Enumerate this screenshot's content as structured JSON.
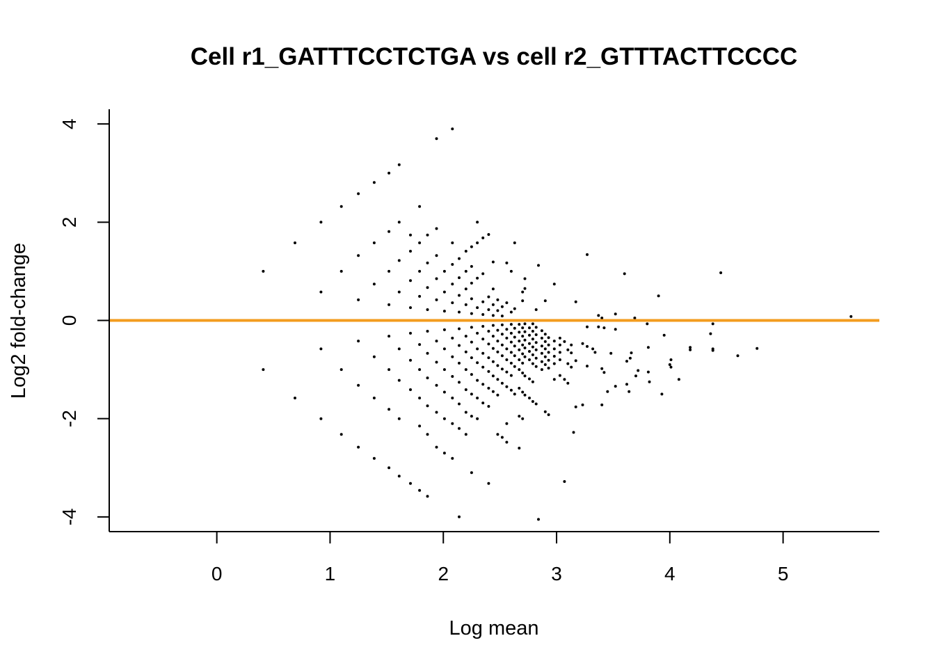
{
  "chart_data": {
    "type": "scatter",
    "title": "Cell r1_GATTTCCTCTGA vs cell r2_GTTTACTTCCCC",
    "xlabel": "Log mean",
    "ylabel": "Log2 fold-change",
    "xlim": [
      -0.95,
      5.85
    ],
    "ylim": [
      -4.3,
      4.3
    ],
    "xticks": [
      0,
      1,
      2,
      3,
      4,
      5
    ],
    "yticks": [
      -4,
      -2,
      0,
      2,
      4
    ],
    "xtick_labels": [
      "0",
      "1",
      "2",
      "3",
      "4",
      "5"
    ],
    "ytick_labels": [
      "-4",
      "-2",
      "0",
      "2",
      "4"
    ],
    "grid": false,
    "reference_line": {
      "y": 0,
      "color": "#f39c1f"
    },
    "point_color": "#000000",
    "points": [
      [
        0.0,
        0.0
      ],
      [
        0.41,
        1.0
      ],
      [
        0.41,
        -1.0
      ],
      [
        0.41,
        0.0
      ],
      [
        0.69,
        1.58
      ],
      [
        0.69,
        -1.58
      ],
      [
        0.69,
        0.0
      ],
      [
        0.92,
        2.0
      ],
      [
        0.92,
        0.58
      ],
      [
        0.92,
        -0.58
      ],
      [
        0.92,
        -2.0
      ],
      [
        0.92,
        0.0
      ],
      [
        1.1,
        2.32
      ],
      [
        1.1,
        1.0
      ],
      [
        1.1,
        -1.0
      ],
      [
        1.1,
        -2.32
      ],
      [
        1.1,
        0.0
      ],
      [
        1.25,
        2.58
      ],
      [
        1.25,
        1.32
      ],
      [
        1.25,
        0.42
      ],
      [
        1.25,
        -0.42
      ],
      [
        1.25,
        -1.32
      ],
      [
        1.25,
        -2.58
      ],
      [
        1.39,
        2.81
      ],
      [
        1.39,
        1.58
      ],
      [
        1.39,
        0.74
      ],
      [
        1.39,
        -0.74
      ],
      [
        1.39,
        -1.58
      ],
      [
        1.39,
        -2.81
      ],
      [
        1.39,
        0.0
      ],
      [
        1.52,
        3.0
      ],
      [
        1.52,
        1.81
      ],
      [
        1.52,
        1.0
      ],
      [
        1.52,
        0.32
      ],
      [
        1.52,
        -0.32
      ],
      [
        1.52,
        -1.0
      ],
      [
        1.52,
        -1.81
      ],
      [
        1.52,
        -3.0
      ],
      [
        1.61,
        3.17
      ],
      [
        1.61,
        2.0
      ],
      [
        1.61,
        1.22
      ],
      [
        1.61,
        0.58
      ],
      [
        1.61,
        -0.58
      ],
      [
        1.61,
        -1.22
      ],
      [
        1.61,
        -2.0
      ],
      [
        1.61,
        -3.17
      ],
      [
        1.61,
        0.0
      ],
      [
        1.71,
        1.74
      ],
      [
        1.71,
        1.41
      ],
      [
        1.71,
        0.81
      ],
      [
        1.71,
        0.26
      ],
      [
        1.71,
        -0.26
      ],
      [
        1.71,
        -0.81
      ],
      [
        1.71,
        -1.41
      ],
      [
        1.71,
        -3.32
      ],
      [
        1.79,
        2.32
      ],
      [
        1.79,
        1.58
      ],
      [
        1.79,
        1.0
      ],
      [
        1.79,
        0.49
      ],
      [
        1.79,
        -0.49
      ],
      [
        1.79,
        -1.0
      ],
      [
        1.79,
        -1.58
      ],
      [
        1.79,
        -2.15
      ],
      [
        1.79,
        -3.46
      ],
      [
        1.79,
        0.0
      ],
      [
        1.86,
        1.74
      ],
      [
        1.86,
        1.17
      ],
      [
        1.86,
        0.67
      ],
      [
        1.86,
        0.22
      ],
      [
        1.86,
        -0.22
      ],
      [
        1.86,
        -0.67
      ],
      [
        1.86,
        -1.17
      ],
      [
        1.86,
        -1.74
      ],
      [
        1.86,
        -2.32
      ],
      [
        1.86,
        -3.58
      ],
      [
        1.94,
        3.7
      ],
      [
        1.94,
        1.87
      ],
      [
        1.94,
        1.32
      ],
      [
        1.94,
        0.85
      ],
      [
        1.94,
        0.42
      ],
      [
        1.94,
        -0.42
      ],
      [
        1.94,
        -0.85
      ],
      [
        1.94,
        -1.32
      ],
      [
        1.94,
        -1.87
      ],
      [
        1.94,
        -2.58
      ],
      [
        1.94,
        0.0
      ],
      [
        2.01,
        1.0
      ],
      [
        2.01,
        0.58
      ],
      [
        2.01,
        0.19
      ],
      [
        2.01,
        -0.19
      ],
      [
        2.01,
        -0.58
      ],
      [
        2.01,
        -1.0
      ],
      [
        2.01,
        -1.46
      ],
      [
        2.01,
        -2.0
      ],
      [
        2.01,
        -2.7
      ],
      [
        2.08,
        3.9
      ],
      [
        2.08,
        1.58
      ],
      [
        2.08,
        1.14
      ],
      [
        2.08,
        0.74
      ],
      [
        2.08,
        0.36
      ],
      [
        2.08,
        0.0
      ],
      [
        2.08,
        -0.36
      ],
      [
        2.08,
        -0.74
      ],
      [
        2.08,
        -1.14
      ],
      [
        2.08,
        -1.58
      ],
      [
        2.08,
        -2.1
      ],
      [
        2.08,
        -2.81
      ],
      [
        2.14,
        1.26
      ],
      [
        2.14,
        0.87
      ],
      [
        2.14,
        0.51
      ],
      [
        2.14,
        0.17
      ],
      [
        2.14,
        -0.17
      ],
      [
        2.14,
        -0.51
      ],
      [
        2.14,
        -0.87
      ],
      [
        2.14,
        -1.26
      ],
      [
        2.14,
        -1.7
      ],
      [
        2.14,
        -2.2
      ],
      [
        2.14,
        -4.0
      ],
      [
        2.2,
        1.41
      ],
      [
        2.2,
        1.0
      ],
      [
        2.2,
        0.64
      ],
      [
        2.2,
        0.32
      ],
      [
        2.2,
        0.0
      ],
      [
        2.2,
        -0.32
      ],
      [
        2.2,
        -0.64
      ],
      [
        2.2,
        -1.0
      ],
      [
        2.2,
        -1.41
      ],
      [
        2.2,
        -1.87
      ],
      [
        2.2,
        -2.32
      ],
      [
        2.25,
        1.5
      ],
      [
        2.25,
        1.1
      ],
      [
        2.25,
        0.76
      ],
      [
        2.25,
        0.44
      ],
      [
        2.25,
        0.14
      ],
      [
        2.25,
        -0.14
      ],
      [
        2.25,
        -0.44
      ],
      [
        2.25,
        -0.76
      ],
      [
        2.25,
        -1.1
      ],
      [
        2.25,
        -1.5
      ],
      [
        2.25,
        -1.95
      ],
      [
        2.25,
        -3.1
      ],
      [
        2.3,
        2.0
      ],
      [
        2.3,
        1.58
      ],
      [
        2.3,
        0.86
      ],
      [
        2.3,
        0.26
      ],
      [
        2.3,
        -0.26
      ],
      [
        2.3,
        -0.58
      ],
      [
        2.3,
        -0.86
      ],
      [
        2.3,
        -1.22
      ],
      [
        2.3,
        -1.58
      ],
      [
        2.3,
        -2.0
      ],
      [
        2.3,
        0.0
      ],
      [
        2.35,
        1.68
      ],
      [
        2.35,
        0.95
      ],
      [
        2.35,
        0.38
      ],
      [
        2.35,
        0.12
      ],
      [
        2.35,
        -0.12
      ],
      [
        2.35,
        -0.38
      ],
      [
        2.35,
        -0.67
      ],
      [
        2.35,
        -0.95
      ],
      [
        2.35,
        -1.3
      ],
      [
        2.35,
        -1.68
      ],
      [
        2.4,
        1.75
      ],
      [
        2.4,
        0.48
      ],
      [
        2.4,
        0.22
      ],
      [
        2.4,
        -0.22
      ],
      [
        2.4,
        -0.48
      ],
      [
        2.4,
        -0.76
      ],
      [
        2.4,
        -1.04
      ],
      [
        2.4,
        -1.38
      ],
      [
        2.4,
        -1.75
      ],
      [
        2.4,
        -3.32
      ],
      [
        2.44,
        1.19
      ],
      [
        2.44,
        0.64
      ],
      [
        2.44,
        0.32
      ],
      [
        2.44,
        0.1
      ],
      [
        2.44,
        -0.1
      ],
      [
        2.44,
        -0.32
      ],
      [
        2.44,
        -0.57
      ],
      [
        2.44,
        -0.84
      ],
      [
        2.44,
        -1.13
      ],
      [
        2.44,
        -1.45
      ],
      [
        2.48,
        0.42
      ],
      [
        2.48,
        0.2
      ],
      [
        2.48,
        -0.2
      ],
      [
        2.48,
        -0.42
      ],
      [
        2.48,
        -0.64
      ],
      [
        2.48,
        -0.92
      ],
      [
        2.48,
        -1.2
      ],
      [
        2.48,
        -1.52
      ],
      [
        2.48,
        -2.32
      ],
      [
        2.52,
        0.28
      ],
      [
        2.52,
        0.09
      ],
      [
        2.52,
        -0.09
      ],
      [
        2.52,
        -0.28
      ],
      [
        2.52,
        -0.5
      ],
      [
        2.52,
        -0.72
      ],
      [
        2.52,
        -0.99
      ],
      [
        2.52,
        -1.28
      ],
      [
        2.52,
        -2.38
      ],
      [
        2.56,
        1.17
      ],
      [
        2.56,
        0.36
      ],
      [
        2.56,
        -0.18
      ],
      [
        2.56,
        -0.36
      ],
      [
        2.56,
        -0.58
      ],
      [
        2.56,
        -0.8
      ],
      [
        2.56,
        -1.05
      ],
      [
        2.56,
        -1.35
      ],
      [
        2.56,
        -2.1
      ],
      [
        2.56,
        -2.48
      ],
      [
        2.6,
        1.0
      ],
      [
        2.6,
        0.17
      ],
      [
        2.6,
        -0.08
      ],
      [
        2.6,
        -0.26
      ],
      [
        2.6,
        -0.44
      ],
      [
        2.6,
        -0.65
      ],
      [
        2.6,
        -0.87
      ],
      [
        2.6,
        -1.12
      ],
      [
        2.6,
        -1.42
      ],
      [
        2.6,
        0.0
      ],
      [
        2.63,
        1.58
      ],
      [
        2.63,
        0.24
      ],
      [
        2.63,
        -0.16
      ],
      [
        2.63,
        -0.34
      ],
      [
        2.63,
        -0.52
      ],
      [
        2.63,
        -0.72
      ],
      [
        2.63,
        -0.94
      ],
      [
        2.63,
        -1.5
      ],
      [
        2.67,
        -0.08
      ],
      [
        2.67,
        -0.24
      ],
      [
        2.67,
        -0.42
      ],
      [
        2.67,
        -0.6
      ],
      [
        2.67,
        -0.8
      ],
      [
        2.67,
        -1.0
      ],
      [
        2.67,
        -1.38
      ],
      [
        2.67,
        -1.95
      ],
      [
        2.67,
        -2.6
      ],
      [
        2.7,
        0.58
      ],
      [
        2.7,
        0.4
      ],
      [
        2.7,
        -0.15
      ],
      [
        2.7,
        -0.32
      ],
      [
        2.7,
        -0.5
      ],
      [
        2.7,
        -0.68
      ],
      [
        2.7,
        -0.87
      ],
      [
        2.7,
        -1.07
      ],
      [
        2.7,
        -1.46
      ],
      [
        2.7,
        -2.0
      ],
      [
        2.72,
        0.85
      ],
      [
        2.72,
        0.65
      ],
      [
        2.72,
        -0.07
      ],
      [
        2.72,
        -0.23
      ],
      [
        2.72,
        -0.4
      ],
      [
        2.72,
        -0.56
      ],
      [
        2.72,
        -0.74
      ],
      [
        2.72,
        -1.13
      ],
      [
        2.72,
        -1.52
      ],
      [
        2.76,
        -0.15
      ],
      [
        2.76,
        -0.3
      ],
      [
        2.76,
        -0.47
      ],
      [
        2.76,
        -0.63
      ],
      [
        2.76,
        -0.8
      ],
      [
        2.76,
        -1.19
      ],
      [
        2.76,
        -1.58
      ],
      [
        2.79,
        -0.07
      ],
      [
        2.79,
        -0.22
      ],
      [
        2.79,
        -0.38
      ],
      [
        2.79,
        -0.54
      ],
      [
        2.79,
        -0.7
      ],
      [
        2.79,
        -0.88
      ],
      [
        2.79,
        -1.25
      ],
      [
        2.79,
        -1.65
      ],
      [
        2.82,
        0.22
      ],
      [
        2.82,
        -0.14
      ],
      [
        2.82,
        -0.29
      ],
      [
        2.82,
        -0.45
      ],
      [
        2.82,
        -0.6
      ],
      [
        2.82,
        -0.77
      ],
      [
        2.82,
        -0.94
      ],
      [
        2.82,
        -1.7
      ],
      [
        2.84,
        1.12
      ],
      [
        2.84,
        -4.05
      ],
      [
        2.87,
        -0.21
      ],
      [
        2.87,
        -0.36
      ],
      [
        2.87,
        -0.52
      ],
      [
        2.87,
        -0.67
      ],
      [
        2.87,
        -0.84
      ],
      [
        2.87,
        -1.0
      ],
      [
        2.9,
        0.4
      ],
      [
        2.9,
        -0.28
      ],
      [
        2.9,
        -0.43
      ],
      [
        2.9,
        -0.58
      ],
      [
        2.9,
        -0.74
      ],
      [
        2.9,
        -0.9
      ],
      [
        2.9,
        -1.86
      ],
      [
        2.93,
        -0.35
      ],
      [
        2.93,
        -0.5
      ],
      [
        2.93,
        -0.65
      ],
      [
        2.93,
        -0.81
      ],
      [
        2.93,
        -0.97
      ],
      [
        2.93,
        -1.92
      ],
      [
        2.98,
        0.74
      ],
      [
        2.98,
        -0.42
      ],
      [
        2.98,
        -0.58
      ],
      [
        2.98,
        -0.73
      ],
      [
        2.98,
        -0.88
      ],
      [
        2.98,
        -1.2
      ],
      [
        3.03,
        -0.36
      ],
      [
        3.03,
        -0.5
      ],
      [
        3.03,
        -0.65
      ],
      [
        3.03,
        -0.8
      ],
      [
        3.03,
        -1.12
      ],
      [
        3.07,
        -0.43
      ],
      [
        3.07,
        -1.2
      ],
      [
        3.07,
        -3.28
      ],
      [
        3.1,
        -0.6
      ],
      [
        3.1,
        -0.88
      ],
      [
        3.1,
        -1.28
      ],
      [
        3.13,
        -0.5
      ],
      [
        3.13,
        -0.66
      ],
      [
        3.13,
        -0.95
      ],
      [
        3.17,
        0.38
      ],
      [
        3.17,
        -0.82
      ],
      [
        3.17,
        -1.76
      ],
      [
        3.15,
        -2.28
      ],
      [
        3.23,
        -0.47
      ],
      [
        3.23,
        -1.72
      ],
      [
        3.27,
        1.34
      ],
      [
        3.27,
        -0.13
      ],
      [
        3.27,
        -0.53
      ],
      [
        3.27,
        -0.93
      ],
      [
        3.32,
        -0.58
      ],
      [
        3.34,
        -0.65
      ],
      [
        3.37,
        0.1
      ],
      [
        3.37,
        -0.13
      ],
      [
        3.4,
        0.05
      ],
      [
        3.4,
        -0.98
      ],
      [
        3.4,
        -1.72
      ],
      [
        3.42,
        -0.15
      ],
      [
        3.42,
        -1.06
      ],
      [
        3.45,
        -1.45
      ],
      [
        3.48,
        -0.67
      ],
      [
        3.52,
        0.13
      ],
      [
        3.52,
        -0.18
      ],
      [
        3.52,
        -1.34
      ],
      [
        3.6,
        0.95
      ],
      [
        3.62,
        -1.3
      ],
      [
        3.62,
        -0.83
      ],
      [
        3.64,
        -1.45
      ],
      [
        3.65,
        -0.77
      ],
      [
        3.66,
        -0.66
      ],
      [
        3.69,
        0.05
      ],
      [
        3.7,
        -1.13
      ],
      [
        3.72,
        -1.02
      ],
      [
        3.8,
        -0.07
      ],
      [
        3.81,
        -0.55
      ],
      [
        3.81,
        -1.05
      ],
      [
        3.82,
        -1.25
      ],
      [
        3.9,
        0.5
      ],
      [
        3.93,
        -1.5
      ],
      [
        3.95,
        -0.3
      ],
      [
        4.0,
        -0.9
      ],
      [
        4.01,
        -0.8
      ],
      [
        4.01,
        -0.95
      ],
      [
        4.08,
        -1.2
      ],
      [
        4.18,
        -0.55
      ],
      [
        4.18,
        -0.6
      ],
      [
        4.36,
        -0.27
      ],
      [
        4.38,
        -0.07
      ],
      [
        4.38,
        -0.58
      ],
      [
        4.38,
        -0.61
      ],
      [
        4.45,
        0.97
      ],
      [
        4.6,
        -0.72
      ],
      [
        4.77,
        -0.57
      ],
      [
        5.6,
        0.08
      ]
    ]
  }
}
